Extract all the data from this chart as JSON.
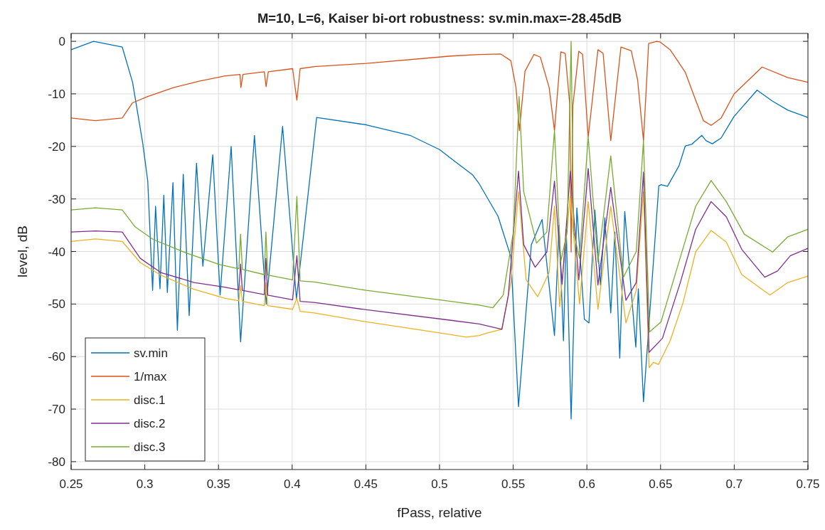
{
  "chart_data": {
    "type": "line",
    "title": "M=10, L=6, Kaiser bi-ort robustness: sv.min.max=-28.45dB",
    "xlabel": "fPass, relative",
    "ylabel": "level, dB",
    "xlim": [
      0.25,
      0.75
    ],
    "ylim": [
      -81.5,
      1.5
    ],
    "xticks": [
      0.25,
      0.3,
      0.35,
      0.4,
      0.45,
      0.5,
      0.55,
      0.6,
      0.65,
      0.7,
      0.75
    ],
    "yticks": [
      -80,
      -70,
      -60,
      -50,
      -40,
      -30,
      -20,
      -10,
      0
    ],
    "grid": true,
    "legend": "bottom left",
    "line_style": "solid",
    "marker": "none",
    "series": [
      {
        "name": "sv.min",
        "color": "#0072bd",
        "x": [
          0.25,
          0.2652,
          0.2847,
          0.2917,
          0.2986,
          0.302,
          0.3053,
          0.3073,
          0.3103,
          0.3129,
          0.3153,
          0.3191,
          0.3221,
          0.3261,
          0.3301,
          0.3351,
          0.3394,
          0.3461,
          0.3511,
          0.3586,
          0.365,
          0.3744,
          0.3824,
          0.3935,
          0.4029,
          0.4166,
          0.4504,
          0.48,
          0.5,
          0.5078,
          0.5224,
          0.5269,
          0.5397,
          0.5484,
          0.5536,
          0.5623,
          0.5696,
          0.578,
          0.5811,
          0.5841,
          0.586,
          0.5893,
          0.5932,
          0.5983,
          0.6014,
          0.6054,
          0.6092,
          0.6122,
          0.6162,
          0.619,
          0.6223,
          0.6257,
          0.6332,
          0.6349,
          0.6384,
          0.6488,
          0.6504,
          0.6547,
          0.6625,
          0.6668,
          0.6712,
          0.678,
          0.6808,
          0.6851,
          0.6911,
          0.6999,
          0.7155,
          0.726,
          0.7364,
          0.75
        ],
        "values": [
          -1.6,
          0,
          -1.1,
          -7.8,
          -19.4,
          -26.6,
          -47.4,
          -31.4,
          -47.1,
          -29.3,
          -47.8,
          -26.9,
          -55,
          -25.3,
          -52.2,
          -23.2,
          -42.8,
          -21.6,
          -48.3,
          -20,
          -57.2,
          -17.9,
          -50,
          -16.2,
          -49,
          -14.5,
          -15.9,
          -17.9,
          -20.6,
          -22.3,
          -25.4,
          -27.1,
          -33.3,
          -41,
          -69.5,
          -38.7,
          -33.9,
          -56,
          -35,
          -57,
          -35.8,
          -71.9,
          -31.7,
          -52.9,
          -53.6,
          -32.1,
          -46.4,
          -33.6,
          -51.7,
          -36.3,
          -60.3,
          -32.4,
          -58.2,
          -47.1,
          -68.6,
          -27.5,
          -27.3,
          -27.6,
          -23.7,
          -19.9,
          -19.6,
          -17.9,
          -18.9,
          -19.5,
          -18.4,
          -14.3,
          -9.3,
          -11.4,
          -13.1,
          -14.5
        ]
      },
      {
        "name": "1/max",
        "color": "#d95319",
        "x": [
          0.25,
          0.2665,
          0.2847,
          0.2917,
          0.302,
          0.3195,
          0.3369,
          0.3541,
          0.3646,
          0.3652,
          0.3666,
          0.3811,
          0.3823,
          0.3838,
          0.4003,
          0.4032,
          0.4054,
          0.415,
          0.4504,
          0.5078,
          0.5268,
          0.5414,
          0.5484,
          0.5519,
          0.5542,
          0.558,
          0.5641,
          0.5684,
          0.5744,
          0.578,
          0.5823,
          0.5853,
          0.5884,
          0.5893,
          0.5905,
          0.5945,
          0.5971,
          0.6009,
          0.6075,
          0.611,
          0.6162,
          0.6231,
          0.6301,
          0.6344,
          0.6384,
          0.6419,
          0.6474,
          0.6495,
          0.6565,
          0.6668,
          0.6738,
          0.6791,
          0.6843,
          0.6911,
          0.6999,
          0.7189,
          0.7364,
          0.75
        ],
        "values": [
          -14.6,
          -15.1,
          -14.6,
          -11.7,
          -10.5,
          -8.8,
          -7.6,
          -6.6,
          -6.3,
          -8.8,
          -6.3,
          -5.8,
          -8.6,
          -5.8,
          -5.2,
          -11.2,
          -5.2,
          -4.8,
          -4.2,
          -2.8,
          -2.5,
          -2.4,
          -3.7,
          -8.8,
          -17,
          -5.7,
          -2.5,
          -3,
          -8.8,
          -17,
          -2,
          -2.3,
          -12.2,
          -40.1,
          -12.2,
          -1.9,
          -2.5,
          -18.2,
          -1.6,
          -2.3,
          -18.9,
          -1.1,
          -1.8,
          -7.3,
          -18.9,
          -0.4,
          0,
          -0.1,
          -1.6,
          -5.9,
          -11.2,
          -15.1,
          -16,
          -14.6,
          -10,
          -4.9,
          -6.9,
          -7.8
        ]
      },
      {
        "name": "disc.1",
        "color": "#edb120",
        "x": [
          0.25,
          0.2665,
          0.2847,
          0.2969,
          0.3108,
          0.3334,
          0.3541,
          0.3638,
          0.365,
          0.3662,
          0.3811,
          0.3822,
          0.3834,
          0.4003,
          0.4032,
          0.4054,
          0.415,
          0.4504,
          0.4999,
          0.5182,
          0.5269,
          0.5328,
          0.5423,
          0.5484,
          0.5536,
          0.5588,
          0.5666,
          0.5744,
          0.578,
          0.5815,
          0.5887,
          0.595,
          0.6009,
          0.6075,
          0.6162,
          0.6265,
          0.6335,
          0.6384,
          0.6422,
          0.6452,
          0.6486,
          0.6565,
          0.6652,
          0.6738,
          0.6843,
          0.6946,
          0.7051,
          0.7242,
          0.7364,
          0.75
        ],
        "values": [
          -38.1,
          -37.6,
          -38.1,
          -42.1,
          -44.5,
          -47.2,
          -48.9,
          -49.4,
          -46.5,
          -49.5,
          -50.3,
          -45.9,
          -50.3,
          -51,
          -48.9,
          -51.4,
          -51.7,
          -53.4,
          -55.5,
          -56.3,
          -56,
          -55.5,
          -54.8,
          -45.9,
          -28.6,
          -45.4,
          -48.6,
          -44,
          -31.4,
          -50.5,
          -29.5,
          -50,
          -30.5,
          -51,
          -31.4,
          -53.6,
          -47.4,
          -28.6,
          -62.1,
          -61.1,
          -61.5,
          -57,
          -49.8,
          -40.1,
          -36,
          -38.2,
          -44.4,
          -48.3,
          -45.9,
          -44.7
        ]
      },
      {
        "name": "disc.2",
        "color": "#7e2f8e",
        "x": [
          0.25,
          0.2665,
          0.2847,
          0.2969,
          0.3108,
          0.3334,
          0.3541,
          0.3638,
          0.365,
          0.3662,
          0.3811,
          0.3822,
          0.3834,
          0.4003,
          0.4032,
          0.4054,
          0.415,
          0.4504,
          0.5078,
          0.5269,
          0.5423,
          0.5467,
          0.5536,
          0.5571,
          0.5649,
          0.5728,
          0.578,
          0.5832,
          0.5887,
          0.5945,
          0.6009,
          0.6075,
          0.6162,
          0.6265,
          0.6335,
          0.6384,
          0.6422,
          0.6513,
          0.6634,
          0.6738,
          0.6843,
          0.6946,
          0.7051,
          0.7207,
          0.7294,
          0.7381,
          0.75
        ],
        "values": [
          -36.3,
          -36.1,
          -36.3,
          -41.3,
          -44,
          -45.9,
          -46.8,
          -47.3,
          -42.4,
          -47.4,
          -48.2,
          -41.3,
          -48.3,
          -49.2,
          -40.8,
          -49.5,
          -49.7,
          -51.1,
          -53.1,
          -53.8,
          -54.8,
          -48.3,
          -24.7,
          -38.7,
          -43,
          -40.1,
          -26.6,
          -46.2,
          -24.7,
          -45.4,
          -24.2,
          -46.4,
          -27.8,
          -49.3,
          -45.9,
          -24.9,
          -59.2,
          -56.5,
          -45.9,
          -35.8,
          -30.5,
          -33.4,
          -39.6,
          -44.9,
          -43.7,
          -40.8,
          -39.4
        ]
      },
      {
        "name": "disc.3",
        "color": "#77ac30",
        "x": [
          0.25,
          0.2665,
          0.2847,
          0.2934,
          0.3056,
          0.3282,
          0.3507,
          0.3638,
          0.365,
          0.3662,
          0.3811,
          0.3822,
          0.3834,
          0.4003,
          0.4032,
          0.4054,
          0.415,
          0.4504,
          0.5078,
          0.5269,
          0.5362,
          0.5432,
          0.5501,
          0.554,
          0.5571,
          0.5658,
          0.5728,
          0.578,
          0.5823,
          0.5866,
          0.5893,
          0.591,
          0.595,
          0.6009,
          0.6075,
          0.6162,
          0.6248,
          0.6335,
          0.6384,
          0.6425,
          0.6503,
          0.6634,
          0.6738,
          0.6843,
          0.6946,
          0.7068,
          0.726,
          0.7364,
          0.75
        ],
        "values": [
          -32.1,
          -31.7,
          -32.1,
          -35.3,
          -37.7,
          -40.3,
          -42.5,
          -43.3,
          -36.7,
          -43.4,
          -44.4,
          -36.3,
          -44.5,
          -45.4,
          -29.5,
          -45.6,
          -45.8,
          -47.4,
          -49.5,
          -50.2,
          -50.7,
          -48.3,
          -36.3,
          -10.5,
          -28.6,
          -38.4,
          -36.3,
          -17,
          -41.9,
          -36.3,
          0,
          -36.3,
          -41.3,
          -18.2,
          -42,
          -21.8,
          -44.9,
          -40,
          -18.9,
          -55.3,
          -53.4,
          -41.1,
          -31.4,
          -26.5,
          -30.5,
          -36.7,
          -40.1,
          -37.2,
          -35.8
        ]
      }
    ]
  }
}
